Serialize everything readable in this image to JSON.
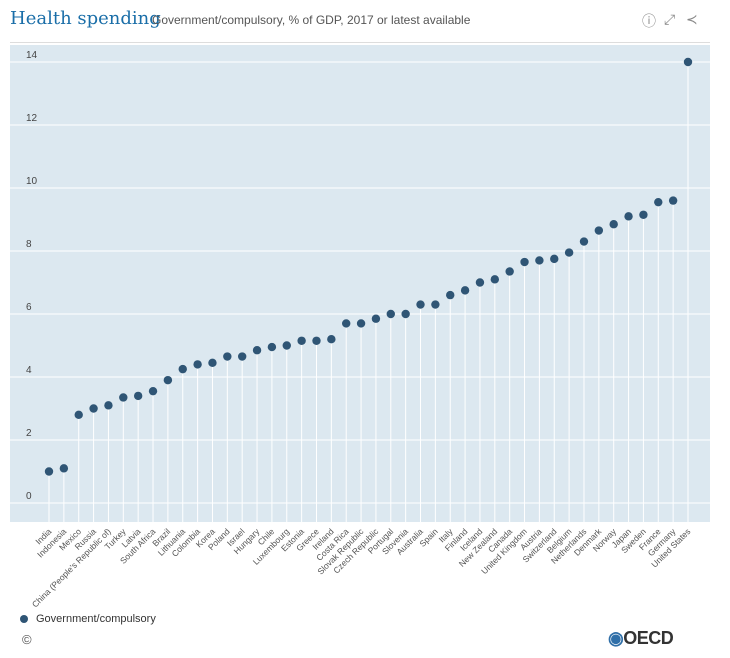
{
  "header": {
    "title": "Health spending",
    "subtitle": "Government/compulsory, % of GDP, 2017 or latest available",
    "icons": [
      "info-icon",
      "expand-icon",
      "share-icon"
    ]
  },
  "chart_data": {
    "type": "scatter",
    "style": "lollipop",
    "title": "Health spending",
    "subtitle": "Government/compulsory, % of GDP, 2017 or latest available",
    "ylim": [
      0,
      14
    ],
    "yticks": [
      0,
      2,
      4,
      6,
      8,
      10,
      12,
      14
    ],
    "grid": true,
    "legend_position": "bottom-left",
    "background": "#dce8f0",
    "categories": [
      "India",
      "Indonesia",
      "Mexico",
      "Russia",
      "China (People's Republic of)",
      "Turkey",
      "Latvia",
      "South Africa",
      "Brazil",
      "Lithuania",
      "Colombia",
      "Korea",
      "Poland",
      "Israel",
      "Hungary",
      "Chile",
      "Luxembourg",
      "Estonia",
      "Greece",
      "Ireland",
      "Costa Rica",
      "Slovak Republic",
      "Czech Republic",
      "Portugal",
      "Slovenia",
      "Australia",
      "Spain",
      "Italy",
      "Finland",
      "Iceland",
      "New Zealand",
      "Canada",
      "United Kingdom",
      "Austria",
      "Switzerland",
      "Belgium",
      "Netherlands",
      "Denmark",
      "Norway",
      "Japan",
      "Sweden",
      "France",
      "Germany",
      "United States"
    ],
    "series": [
      {
        "name": "Government/compulsory",
        "color": "#2f5575",
        "values": [
          1.0,
          1.1,
          2.8,
          3.0,
          3.1,
          3.35,
          3.4,
          3.55,
          3.9,
          4.25,
          4.4,
          4.45,
          4.65,
          4.65,
          4.85,
          4.95,
          5.0,
          5.15,
          5.15,
          5.2,
          5.7,
          5.7,
          5.85,
          6.0,
          6.0,
          6.3,
          6.3,
          6.6,
          6.75,
          7.0,
          7.1,
          7.35,
          7.65,
          7.7,
          7.75,
          7.95,
          8.3,
          8.65,
          8.85,
          9.1,
          9.15,
          9.55,
          9.6,
          14.0
        ]
      }
    ]
  },
  "legend": {
    "label": "Government/compulsory"
  },
  "footer": {
    "copyright": "©",
    "logo": "OECD"
  }
}
